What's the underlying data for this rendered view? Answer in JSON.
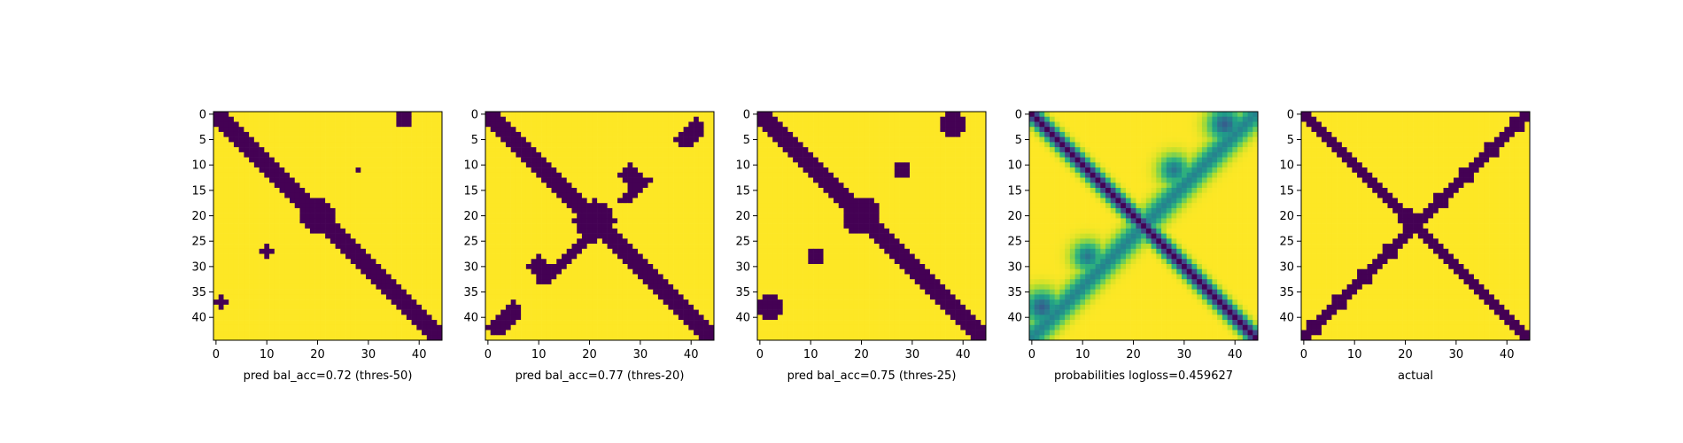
{
  "figure": {
    "panel_count": 5
  },
  "chart_data": [
    {
      "type": "heatmap",
      "xlabel": "pred bal_acc=0.72 (thres-50)",
      "x_ticks": [
        0,
        10,
        20,
        30,
        40
      ],
      "y_ticks": [
        0,
        5,
        10,
        15,
        20,
        25,
        30,
        35,
        40
      ],
      "grid_size": 45,
      "colormap": [
        "#440154",
        "#fde725"
      ],
      "variant": "pred-50"
    },
    {
      "type": "heatmap",
      "xlabel": "pred bal_acc=0.77 (thres-20)",
      "x_ticks": [
        0,
        10,
        20,
        30,
        40
      ],
      "y_ticks": [
        0,
        5,
        10,
        15,
        20,
        25,
        30,
        35,
        40
      ],
      "grid_size": 45,
      "colormap": [
        "#440154",
        "#fde725"
      ],
      "variant": "pred-20"
    },
    {
      "type": "heatmap",
      "xlabel": "pred bal_acc=0.75 (thres-25)",
      "x_ticks": [
        0,
        10,
        20,
        30,
        40
      ],
      "y_ticks": [
        0,
        5,
        10,
        15,
        20,
        25,
        30,
        35,
        40
      ],
      "grid_size": 45,
      "colormap": [
        "#440154",
        "#fde725"
      ],
      "variant": "pred-25"
    },
    {
      "type": "heatmap",
      "xlabel": "probabilities logloss=0.459627",
      "x_ticks": [
        0,
        10,
        20,
        30,
        40
      ],
      "y_ticks": [
        0,
        5,
        10,
        15,
        20,
        25,
        30,
        35,
        40
      ],
      "grid_size": 45,
      "colormap": [
        "#440154",
        "#31688e",
        "#21918c",
        "#35b779",
        "#90d743",
        "#fde725"
      ],
      "variant": "prob"
    },
    {
      "type": "heatmap",
      "xlabel": "actual",
      "x_ticks": [
        0,
        10,
        20,
        30,
        40
      ],
      "y_ticks": [
        0,
        5,
        10,
        15,
        20,
        25,
        30,
        35,
        40
      ],
      "grid_size": 45,
      "colormap": [
        "#440154",
        "#fde725"
      ],
      "variant": "actual"
    }
  ]
}
